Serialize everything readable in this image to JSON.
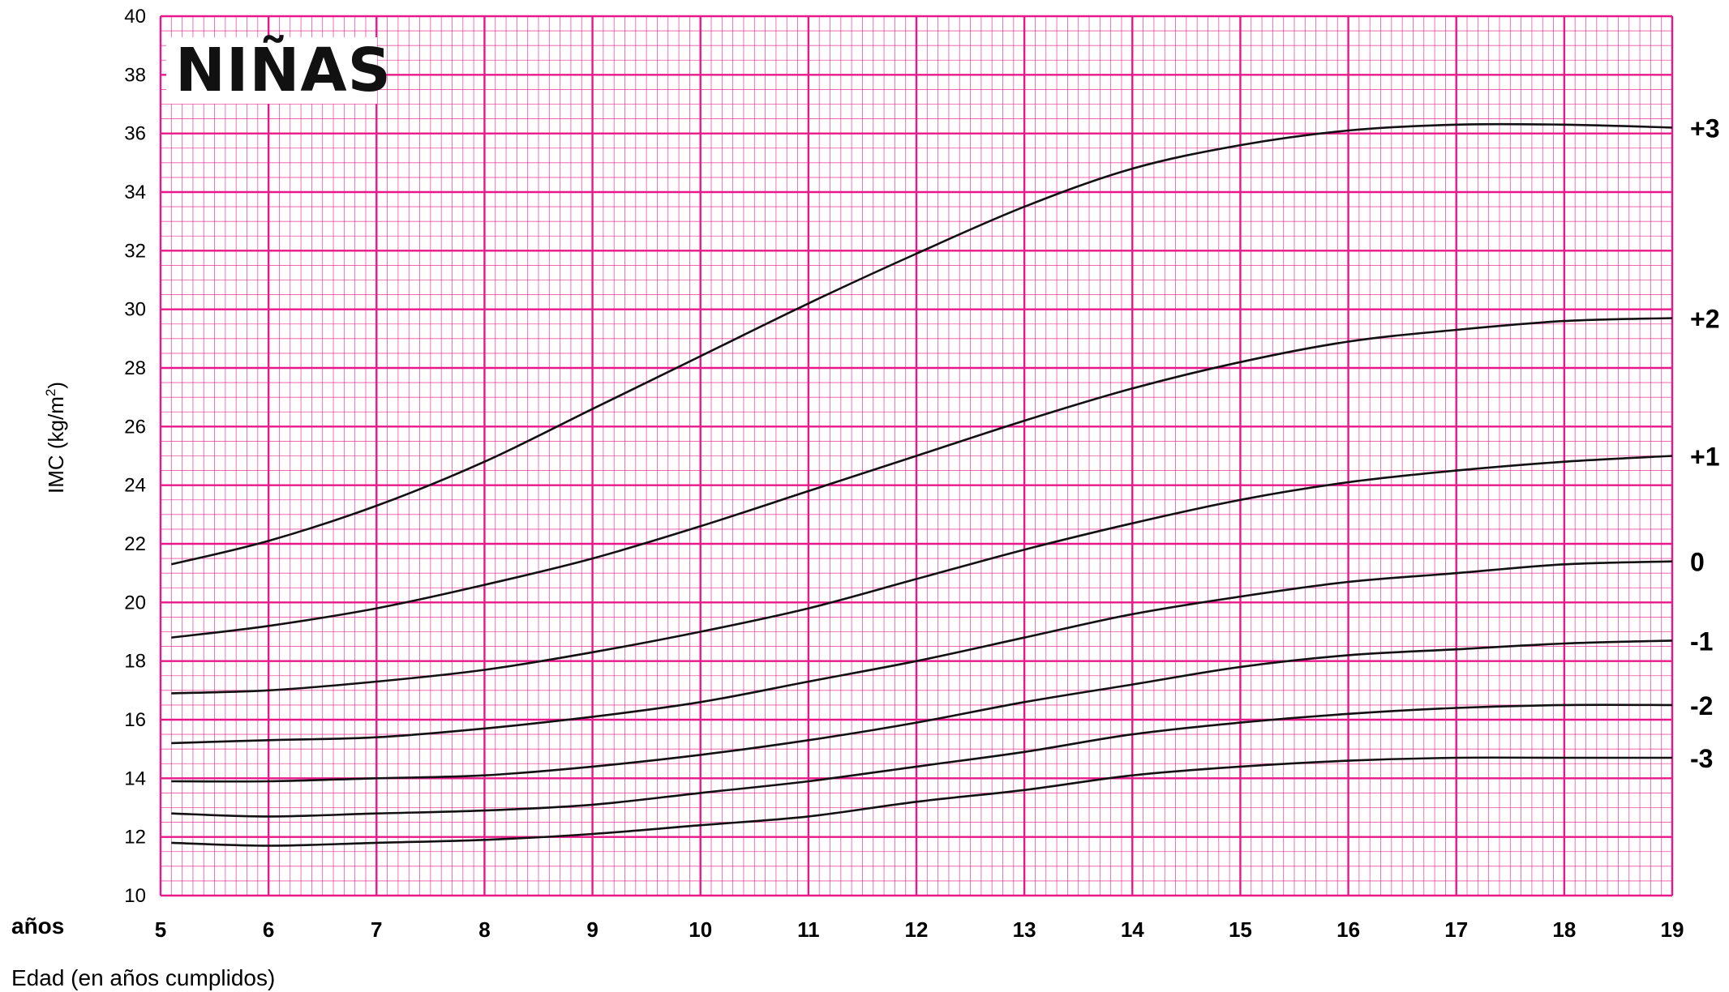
{
  "chart_data": {
    "type": "line",
    "title": "NIÑAS",
    "xlabel": "Edad (en años cumplidos)",
    "xunit_label": "años",
    "ylabel_main": "IMC (kg/m",
    "ylabel_sup": "2",
    "ylabel_end": ")",
    "xlim": [
      5,
      19
    ],
    "ylim": [
      10,
      40
    ],
    "xticks": [
      "5",
      "6",
      "7",
      "8",
      "9",
      "10",
      "11",
      "12",
      "13",
      "14",
      "15",
      "16",
      "17",
      "18",
      "19"
    ],
    "yticks": [
      "10",
      "12",
      "14",
      "16",
      "18",
      "20",
      "22",
      "24",
      "26",
      "28",
      "30",
      "32",
      "34",
      "36",
      "38",
      "40"
    ],
    "grid": true,
    "grid_color": "#e8188a",
    "line_color": "#111111",
    "x": [
      5.1,
      6,
      7,
      8,
      9,
      10,
      11,
      12,
      13,
      14,
      15,
      16,
      17,
      18,
      19
    ],
    "series": [
      {
        "name": "+3",
        "values": [
          21.3,
          22.1,
          23.3,
          24.8,
          26.6,
          28.4,
          30.2,
          31.9,
          33.5,
          34.8,
          35.6,
          36.1,
          36.3,
          36.3,
          36.2
        ]
      },
      {
        "name": "+2",
        "values": [
          18.8,
          19.2,
          19.8,
          20.6,
          21.5,
          22.6,
          23.8,
          25.0,
          26.2,
          27.3,
          28.2,
          28.9,
          29.3,
          29.6,
          29.7
        ]
      },
      {
        "name": "+1",
        "values": [
          16.9,
          17.0,
          17.3,
          17.7,
          18.3,
          19.0,
          19.8,
          20.8,
          21.8,
          22.7,
          23.5,
          24.1,
          24.5,
          24.8,
          25.0
        ]
      },
      {
        "name": "0",
        "values": [
          15.2,
          15.3,
          15.4,
          15.7,
          16.1,
          16.6,
          17.3,
          18.0,
          18.8,
          19.6,
          20.2,
          20.7,
          21.0,
          21.3,
          21.4
        ]
      },
      {
        "name": "-1",
        "values": [
          13.9,
          13.9,
          14.0,
          14.1,
          14.4,
          14.8,
          15.3,
          15.9,
          16.6,
          17.2,
          17.8,
          18.2,
          18.4,
          18.6,
          18.7
        ]
      },
      {
        "name": "-2",
        "values": [
          12.8,
          12.7,
          12.8,
          12.9,
          13.1,
          13.5,
          13.9,
          14.4,
          14.9,
          15.5,
          15.9,
          16.2,
          16.4,
          16.5,
          16.5
        ]
      },
      {
        "name": "-3",
        "values": [
          11.8,
          11.7,
          11.8,
          11.9,
          12.1,
          12.4,
          12.7,
          13.2,
          13.6,
          14.1,
          14.4,
          14.6,
          14.7,
          14.7,
          14.7
        ]
      }
    ]
  }
}
